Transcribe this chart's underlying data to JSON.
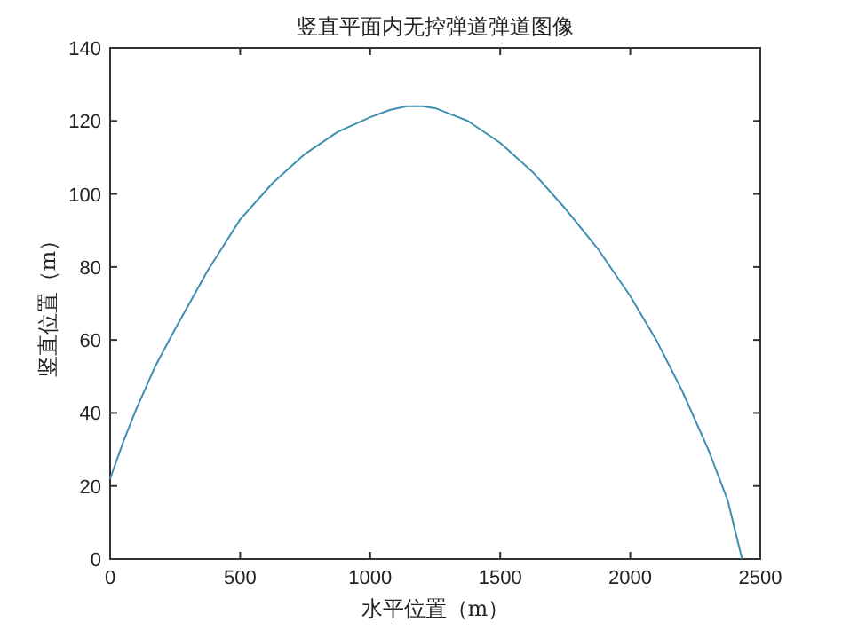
{
  "chart_data": {
    "type": "line",
    "title": "竖直平面内无控弹道弹道图像",
    "xlabel": "水平位置（m）",
    "ylabel": "竖直位置（m）",
    "xlim": [
      0,
      2500
    ],
    "xticks": [
      0,
      500,
      1000,
      1500,
      2000,
      2500
    ],
    "ylim": [
      0,
      140
    ],
    "yticks": [
      0,
      20,
      40,
      60,
      80,
      100,
      120,
      140
    ],
    "x": [
      0,
      50,
      100,
      175,
      250,
      375,
      500,
      625,
      750,
      875,
      1000,
      1075,
      1140,
      1200,
      1250,
      1375,
      1500,
      1625,
      1750,
      1875,
      2000,
      2100,
      2200,
      2300,
      2375,
      2430
    ],
    "series": [
      {
        "color": "#3f8fb0",
        "values": [
          22,
          32,
          41,
          53,
          63,
          79,
          93,
          103,
          111,
          117,
          121,
          123,
          124,
          124,
          123.5,
          120,
          114,
          106,
          96,
          85,
          72,
          60,
          46,
          30,
          16,
          0
        ]
      }
    ]
  }
}
